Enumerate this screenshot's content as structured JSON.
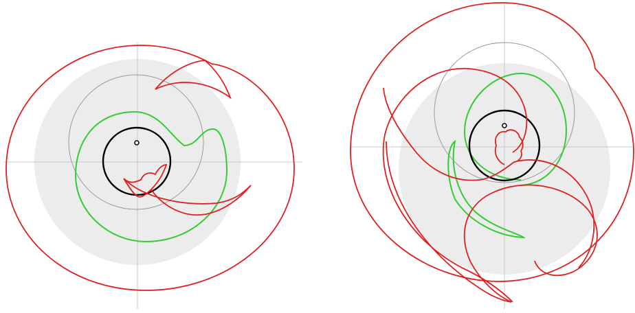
{
  "colors": {
    "background": "#ffffff",
    "axes": "#c8c8c8",
    "gray_disk": "#ececec",
    "thin_circle": "#9a9a9a",
    "green": "#33cc33",
    "red": "#e02020",
    "black": "#000000"
  },
  "panels": [
    {
      "id": "left",
      "description_visible": ""
    },
    {
      "id": "right",
      "description_visible": ""
    }
  ]
}
